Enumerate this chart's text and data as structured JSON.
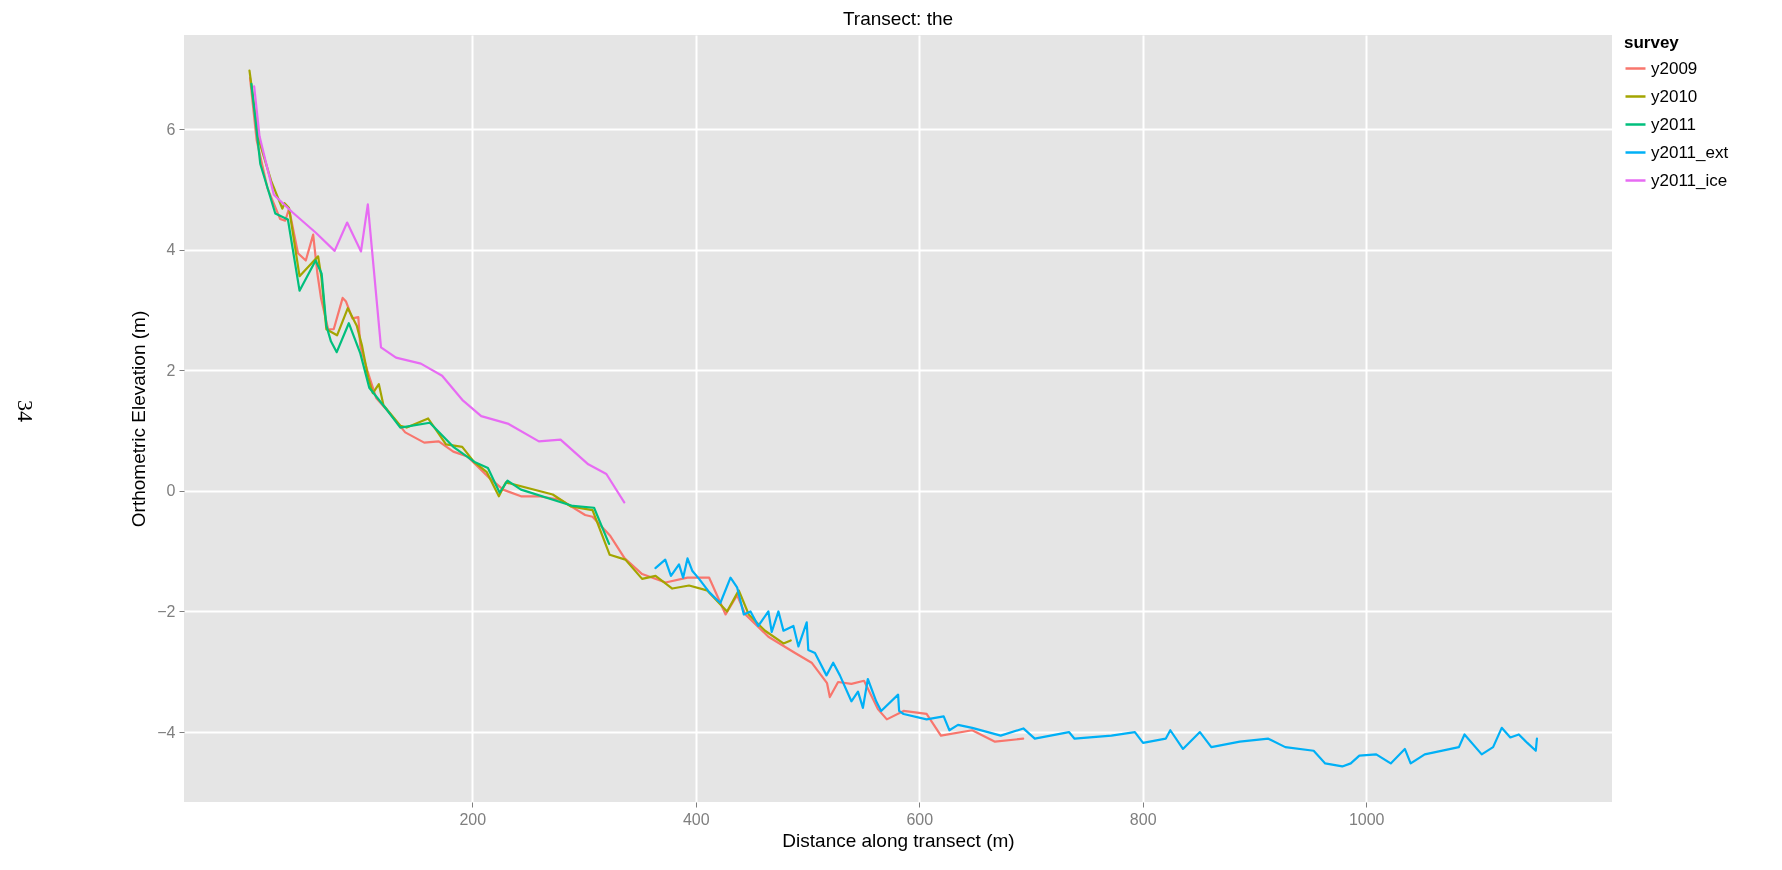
{
  "chart_data": {
    "type": "line",
    "title": "Transect: the",
    "xlabel": "Distance along transect (m)",
    "ylabel": "Orthometric Elevation (m)",
    "legend_title": "survey",
    "legend": "right",
    "grid": true,
    "xlim": [
      -58,
      1220
    ],
    "xticks": [
      200,
      400,
      600,
      800,
      1000
    ],
    "ylim": [
      -5.16,
      7.56
    ],
    "yticks": [
      -4,
      -2,
      0,
      2,
      4,
      6
    ],
    "annotations": [
      "34"
    ],
    "series": [
      {
        "name": "y2009",
        "color": "#f8766d",
        "x": [
          1.1,
          7,
          16.7,
          28,
          32.6,
          36,
          44,
          51,
          57.6,
          61.4,
          64.6,
          71,
          76,
          84,
          87,
          92.7,
          98,
          99.8,
          106,
          114,
          125,
          140,
          157,
          170,
          183,
          195.6,
          205,
          215,
          227.6,
          243.6,
          259.6,
          279,
          301,
          307.6,
          323.6,
          336.4,
          352,
          373,
          392.6,
          412,
          426.7,
          437,
          444.4,
          465,
          488.9,
          503.7,
          517.5,
          520,
          527.4,
          539.3,
          550.6,
          563,
          571,
          586,
          606.6,
          619.4,
          647.4,
          667.8,
          693
        ],
        "values": [
          6.85,
          5.82,
          5.02,
          4.51,
          4.48,
          4.68,
          3.94,
          3.82,
          4.25,
          3.6,
          3.2,
          2.68,
          2.68,
          3.2,
          3.14,
          2.86,
          2.88,
          2.4,
          2.0,
          1.54,
          1.31,
          0.97,
          0.8,
          0.82,
          0.65,
          0.57,
          0.4,
          0.22,
          0.02,
          -0.09,
          -0.09,
          -0.15,
          -0.4,
          -0.43,
          -0.75,
          -1.12,
          -1.38,
          -1.52,
          -1.44,
          -1.44,
          -2.05,
          -1.73,
          -2.05,
          -2.42,
          -2.69,
          -2.85,
          -3.19,
          -3.42,
          -3.17,
          -3.2,
          -3.15,
          -3.62,
          -3.79,
          -3.65,
          -3.7,
          -4.06,
          -3.97,
          -4.16,
          -4.11
        ]
      },
      {
        "name": "y2010",
        "color": "#a3a500",
        "x": [
          0.6,
          9,
          20,
          30,
          32,
          36,
          45.4,
          62,
          65,
          69.4,
          79,
          88.6,
          96.6,
          101.4,
          106.8,
          111,
          116.4,
          120.5,
          135.6,
          141.3,
          160.5,
          176.5,
          191,
          201.5,
          213,
          223.8,
          230,
          272,
          288.4,
          307.6,
          323,
          337,
          352,
          364,
          379,
          394,
          410,
          428,
          438.5,
          447.4,
          462,
          478.5,
          485
        ],
        "values": [
          6.97,
          5.82,
          5.14,
          4.68,
          4.77,
          4.69,
          3.56,
          3.89,
          3.54,
          2.68,
          2.58,
          3.03,
          2.74,
          2.4,
          1.88,
          1.62,
          1.77,
          1.42,
          1.08,
          1.05,
          1.2,
          0.77,
          0.73,
          0.48,
          0.31,
          -0.09,
          0.14,
          -0.06,
          -0.26,
          -0.32,
          -1.06,
          -1.14,
          -1.46,
          -1.41,
          -1.62,
          -1.57,
          -1.65,
          -2.0,
          -1.65,
          -2.05,
          -2.32,
          -2.53,
          -2.48
        ]
      },
      {
        "name": "y2011",
        "color": "#00bf7d",
        "x": [
          2.3,
          10.3,
          23.7,
          35,
          45.4,
          59.8,
          65.2,
          69.4,
          73.5,
          78.7,
          89.5,
          99.8,
          107.8,
          123.7,
          135.6,
          162,
          183,
          202,
          214,
          224.5,
          231.5,
          243.6,
          290,
          309,
          322.4
        ],
        "values": [
          6.75,
          5.42,
          4.6,
          4.5,
          3.32,
          3.82,
          3.6,
          2.74,
          2.48,
          2.3,
          2.78,
          2.28,
          1.71,
          1.34,
          1.05,
          1.13,
          0.73,
          0.48,
          0.38,
          -0.03,
          0.17,
          0.02,
          -0.25,
          -0.28,
          -0.88
        ]
      },
      {
        "name": "y2011_ext",
        "color": "#00b0f6",
        "x": [
          363.9,
          372.7,
          377.8,
          385,
          388.7,
          392.6,
          397,
          403,
          412,
          422,
          431.1,
          437,
          443,
          449,
          456,
          465,
          468,
          474,
          478.5,
          487.4,
          491.9,
          499.3,
          500.7,
          506.7,
          517,
          523,
          529,
          539.3,
          545.2,
          549.6,
          554,
          561.5,
          565.9,
          581.1,
          582,
          586,
          606.6,
          621.9,
          627,
          634.7,
          647.4,
          672.9,
          693.2,
          703.4,
          734,
          739,
          772,
          793,
          800.3,
          820.6,
          824.7,
          836,
          851.2,
          861.4,
          886.9,
          912.4,
          927.6,
          953,
          963.3,
          978.6,
          986.2,
          993.9,
          1009,
          1022,
          1034.6,
          1039.8,
          1052.4,
          1083,
          1088,
          1103.4,
          1113.6,
          1121.3,
          1129,
          1136.6,
          1144.2,
          1151.8,
          1152.8
        ],
        "values": [
          -1.28,
          -1.14,
          -1.41,
          -1.22,
          -1.44,
          -1.12,
          -1.33,
          -1.46,
          -1.68,
          -1.86,
          -1.44,
          -1.6,
          -2.05,
          -2.0,
          -2.24,
          -2.0,
          -2.34,
          -2.0,
          -2.32,
          -2.24,
          -2.58,
          -2.18,
          -2.64,
          -2.69,
          -3.06,
          -2.85,
          -3.06,
          -3.49,
          -3.33,
          -3.6,
          -3.12,
          -3.49,
          -3.65,
          -3.38,
          -3.65,
          -3.7,
          -3.79,
          -3.74,
          -3.97,
          -3.88,
          -3.93,
          -4.06,
          -3.94,
          -4.11,
          -4.0,
          -4.11,
          -4.06,
          -4.0,
          -4.18,
          -4.11,
          -3.97,
          -4.28,
          -4.0,
          -4.25,
          -4.16,
          -4.11,
          -4.25,
          -4.31,
          -4.52,
          -4.57,
          -4.52,
          -4.39,
          -4.37,
          -4.52,
          -4.28,
          -4.52,
          -4.37,
          -4.25,
          -4.04,
          -4.37,
          -4.25,
          -3.93,
          -4.09,
          -4.04,
          -4.18,
          -4.31,
          -4.11
        ]
      },
      {
        "name": "y2011_ice",
        "color": "#e76bf3",
        "x": [
          4.8,
          9.6,
          22.4,
          39,
          60,
          76.8,
          88,
          100.4,
          106.5,
          118.3,
          131.7,
          154,
          173,
          191,
          208,
          232.5,
          259.6,
          279,
          303.8,
          320,
          336
        ],
        "values": [
          6.71,
          5.88,
          4.91,
          4.62,
          4.28,
          3.98,
          4.45,
          3.97,
          4.75,
          2.38,
          2.21,
          2.11,
          1.91,
          1.51,
          1.24,
          1.11,
          0.82,
          0.85,
          0.44,
          0.28,
          -0.19
        ]
      }
    ]
  }
}
